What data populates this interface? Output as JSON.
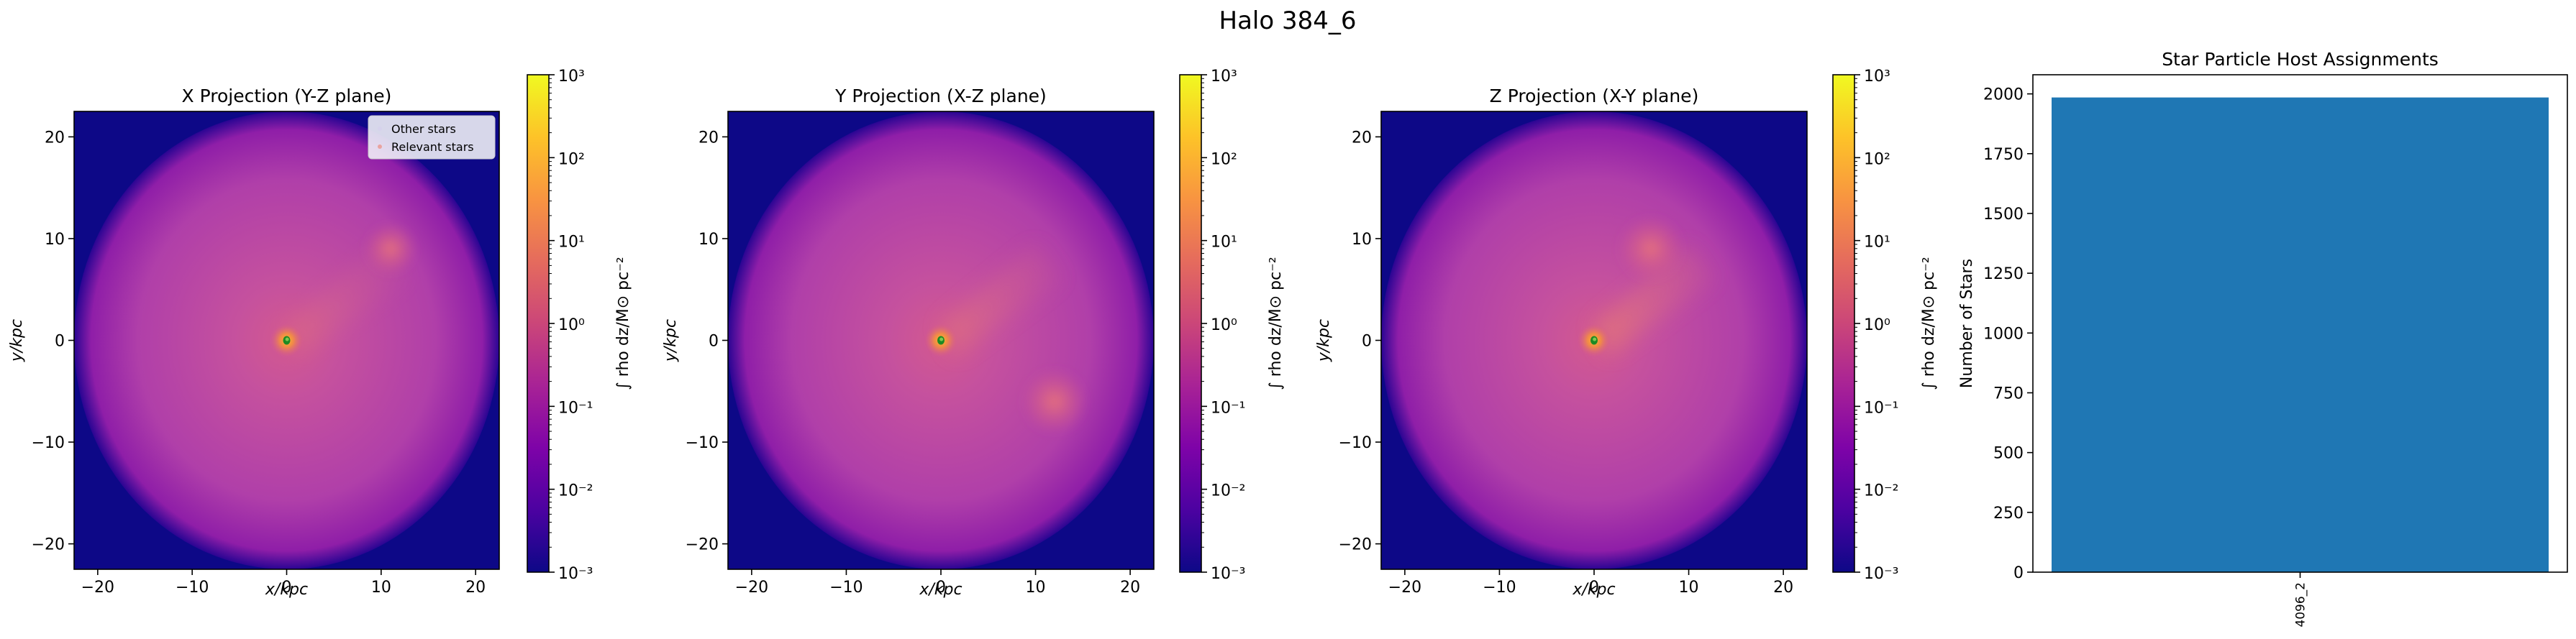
{
  "figure": {
    "suptitle": "Halo 384_6"
  },
  "chart_data": [
    {
      "type": "heatmap",
      "title": "X Projection (Y-Z plane)",
      "xlabel": "x/kpc",
      "ylabel": "y/kpc",
      "xlim": [
        -22.5,
        22.5
      ],
      "ylim": [
        -22.5,
        22.5
      ],
      "xticks": [
        -20,
        -10,
        0,
        10,
        20
      ],
      "yticks": [
        -20,
        -10,
        0,
        10,
        20
      ],
      "xtick_labels": [
        "−20",
        "−10",
        "0",
        "10",
        "20"
      ],
      "ytick_labels": [
        "−20",
        "−10",
        "0",
        "10",
        "20"
      ],
      "colorbar": {
        "label": "∫ rho dz/M⊙ pc⁻²",
        "scale": "log",
        "range": [
          0.001,
          1000
        ],
        "tick_labels": [
          "10³",
          "10²",
          "10¹",
          "10⁰",
          "10⁻¹",
          "10⁻²",
          "10⁻³"
        ],
        "colormap": "plasma"
      },
      "legend": {
        "position": "top-right",
        "entries": [
          "Other stars",
          "Relevant stars"
        ]
      },
      "features": {
        "disk_radius_kpc": 22.5,
        "filament": "weak",
        "clump": [
          11,
          9,
          2.8
        ]
      }
    },
    {
      "type": "heatmap",
      "title": "Y Projection (X-Z plane)",
      "xlabel": "x/kpc",
      "ylabel": "y/kpc",
      "xlim": [
        -22.5,
        22.5
      ],
      "ylim": [
        -22.5,
        22.5
      ],
      "xticks": [
        -20,
        -10,
        0,
        10,
        20
      ],
      "yticks": [
        -20,
        -10,
        0,
        10,
        20
      ],
      "xtick_labels": [
        "−20",
        "−10",
        "0",
        "10",
        "20"
      ],
      "ytick_labels": [
        "−20",
        "−10",
        "0",
        "10",
        "20"
      ],
      "colorbar": {
        "label": "∫ rho dz/M⊙ pc⁻²",
        "scale": "log",
        "range": [
          0.001,
          1000
        ],
        "tick_labels": [
          "10³",
          "10²",
          "10¹",
          "10⁰",
          "10⁻¹",
          "10⁻²",
          "10⁻³"
        ],
        "colormap": "plasma"
      },
      "features": {
        "disk_radius_kpc": 22.5,
        "filament": "medium",
        "clump": [
          12,
          -6,
          3.5
        ]
      }
    },
    {
      "type": "heatmap",
      "title": "Z Projection (X-Y plane)",
      "xlabel": "x/kpc",
      "ylabel": "y/kpc",
      "xlim": [
        -22.5,
        22.5
      ],
      "ylim": [
        -22.5,
        22.5
      ],
      "xticks": [
        -20,
        -10,
        0,
        10,
        20
      ],
      "yticks": [
        -20,
        -10,
        0,
        10,
        20
      ],
      "xtick_labels": [
        "−20",
        "−10",
        "0",
        "10",
        "20"
      ],
      "ytick_labels": [
        "−20",
        "−10",
        "0",
        "10",
        "20"
      ],
      "colorbar": {
        "label": "∫ rho dz/M⊙ pc⁻²",
        "scale": "log",
        "range": [
          0.001,
          1000
        ],
        "tick_labels": [
          "10³",
          "10²",
          "10¹",
          "10⁰",
          "10⁻¹",
          "10⁻²",
          "10⁻³"
        ],
        "colormap": "plasma"
      },
      "features": {
        "disk_radius_kpc": 22.5,
        "filament": "strong",
        "clump": [
          6,
          9,
          3.5
        ]
      }
    },
    {
      "type": "bar",
      "title": "Star Particle Host Assignments",
      "categories": [
        "4096_2"
      ],
      "values": [
        1985
      ],
      "xlabel": "",
      "ylabel": "Number of Stars",
      "ylim": [
        0,
        2080
      ],
      "yticks": [
        0,
        250,
        500,
        750,
        1000,
        1250,
        1500,
        1750,
        2000
      ],
      "bar_color": "#1f77b4"
    }
  ]
}
